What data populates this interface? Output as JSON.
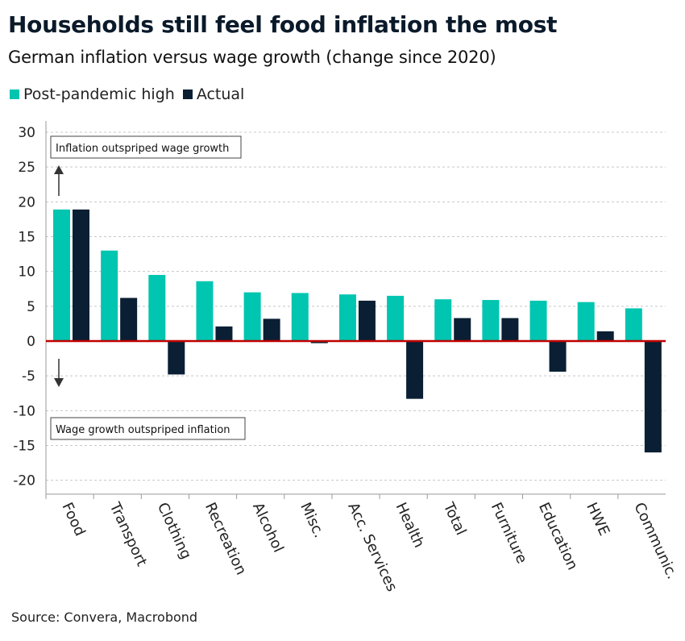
{
  "title": "Households still feel food inflation the most",
  "subtitle": "German inflation versus wage growth (change since 2020)",
  "legend": [
    {
      "label": "Post-pandemic high",
      "color": "#00c5b0"
    },
    {
      "label": "Actual",
      "color": "#0a1f33"
    }
  ],
  "source": "Source: Convera, Macrobond",
  "colors": {
    "zero_line": "#c00000",
    "grid": "#c8c8c8"
  },
  "annotations": {
    "upper": "Inflation outspriped wage growth",
    "lower": "Wage growth outspriped inflation"
  },
  "chart_data": {
    "type": "bar",
    "categories": [
      "Food",
      "Transport",
      "Clothing",
      "Recreation",
      "Alcohol",
      "Misc.",
      "Acc. Services",
      "Health",
      "Total",
      "Furniture",
      "Education",
      "HWE",
      "Communic."
    ],
    "series": [
      {
        "name": "Post-pandemic high",
        "values": [
          18.9,
          13.0,
          9.5,
          8.6,
          7.0,
          6.9,
          6.7,
          6.5,
          6.0,
          5.9,
          5.8,
          5.6,
          4.7
        ]
      },
      {
        "name": "Actual",
        "values": [
          18.9,
          6.2,
          -4.8,
          2.1,
          3.2,
          -0.3,
          5.8,
          -8.3,
          3.3,
          3.3,
          -4.4,
          1.4,
          -16.0
        ]
      }
    ],
    "ylim": [
      -22,
      30
    ],
    "yticks": [
      30,
      25,
      20,
      15,
      10,
      5,
      0,
      -5,
      -10,
      -15,
      -20
    ],
    "grid": true,
    "legend_position": "top-left"
  }
}
